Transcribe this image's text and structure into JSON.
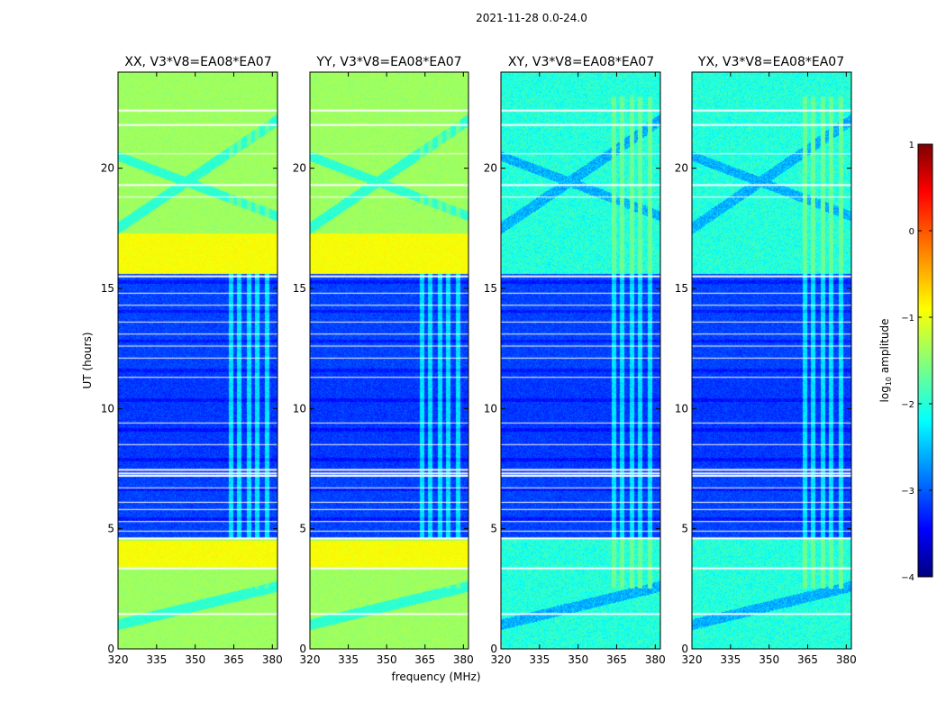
{
  "suptitle": "2021-11-28 0.0-24.0",
  "colors": {
    "flag": "#ffffff",
    "frame": "#000000",
    "background": "#ffffff"
  },
  "chart_data": {
    "type": "heatmap",
    "colormap": "jet",
    "panels": [
      {
        "title": "XX, V3*V8=EA08*EA07",
        "pol": "XX"
      },
      {
        "title": "YY, V3*V8=EA08*EA07",
        "pol": "YY"
      },
      {
        "title": "XY, V3*V8=EA08*EA07",
        "pol": "XY"
      },
      {
        "title": "YX, V3*V8=EA08*EA07",
        "pol": "YX"
      }
    ],
    "xlabel": "frequency (MHz)",
    "ylabel": "UT (hours)",
    "xlim": [
      320,
      382
    ],
    "ylim": [
      0,
      24
    ],
    "xticks": [
      320,
      335,
      350,
      365,
      380
    ],
    "yticks": [
      0,
      5,
      10,
      15,
      20
    ],
    "colorbar": {
      "label": "log10 amplitude",
      "label_base": "log",
      "label_sub": "10",
      "label_rest": " amplitude",
      "range": [
        -4,
        1
      ],
      "ticks": [
        "1",
        "0",
        "−1",
        "−2",
        "−3",
        "−4"
      ]
    },
    "flagged_hours": [
      1.45,
      3.35,
      4.6,
      7.2,
      7.3,
      7.45,
      15.5,
      19.3,
      21.8,
      22.4
    ],
    "rfi_frequencies_mhz": [
      364,
      367,
      371,
      374,
      378
    ],
    "quiet_period_hours": [
      4.6,
      15.6
    ]
  }
}
